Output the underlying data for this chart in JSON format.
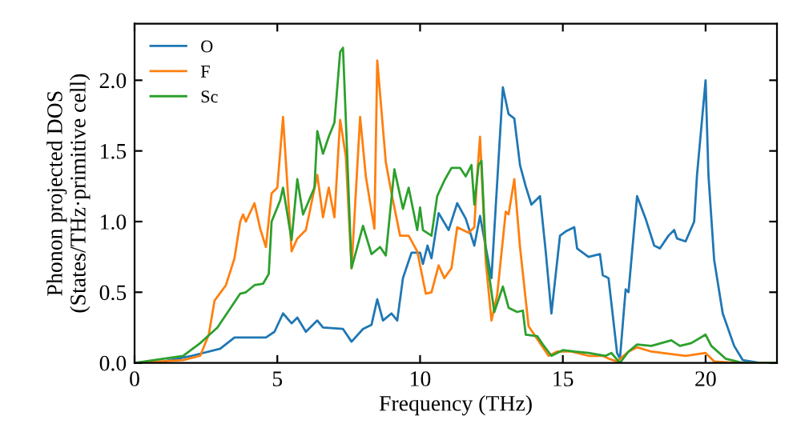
{
  "chart_data": {
    "type": "line",
    "xlabel": "Frequency (THz)",
    "ylabel": "Phonon projected DOS\n(States/THz·primitive cell)",
    "xlim": [
      0,
      22.5
    ],
    "ylim": [
      0,
      2.4
    ],
    "xticks": [
      0,
      5,
      10,
      15,
      20
    ],
    "yticks": [
      {
        "value": 0,
        "label": "0.0"
      },
      0.5,
      {
        "value": 1,
        "label": "1.0"
      },
      1.5,
      {
        "value": 2,
        "label": "2.0"
      }
    ],
    "grid": false,
    "legend": "top left",
    "marker": "none",
    "line_style": "solid",
    "series": [
      {
        "name": "O",
        "color": "#1f77b4",
        "x": [
          0,
          1,
          2,
          3,
          3.5,
          4.5,
          4.6,
          4.9,
          5.2,
          5.5,
          5.7,
          6.0,
          6.4,
          6.6,
          7.3,
          7.6,
          8.0,
          8.3,
          8.5,
          8.7,
          9.0,
          9.2,
          9.4,
          9.7,
          10.0,
          10.1,
          10.26,
          10.4,
          10.65,
          11.0,
          11.3,
          11.6,
          11.9,
          12.1,
          12.5,
          12.9,
          13.1,
          13.3,
          13.5,
          13.7,
          13.9,
          14.2,
          14.4,
          14.6,
          14.9,
          15.1,
          15.4,
          15.5,
          15.9,
          16.3,
          16.4,
          16.6,
          16.9,
          17.0,
          17.2,
          17.3,
          17.6,
          17.9,
          18.2,
          18.4,
          18.7,
          18.9,
          19.0,
          19.3,
          19.6,
          19.7,
          20.0,
          20.1,
          20.3,
          20.6,
          21.0,
          21.3,
          21.9,
          22.5
        ],
        "values": [
          0,
          0.01,
          0.05,
          0.1,
          0.18,
          0.18,
          0.18,
          0.22,
          0.35,
          0.28,
          0.32,
          0.22,
          0.3,
          0.25,
          0.24,
          0.15,
          0.24,
          0.27,
          0.45,
          0.3,
          0.35,
          0.3,
          0.6,
          0.78,
          0.78,
          0.7,
          0.83,
          0.74,
          1.06,
          0.94,
          1.13,
          1.02,
          0.83,
          1.04,
          0.6,
          1.95,
          1.76,
          1.73,
          1.4,
          1.25,
          1.12,
          1.18,
          0.79,
          0.35,
          0.9,
          0.93,
          0.96,
          0.81,
          0.75,
          0.77,
          0.62,
          0.6,
          0.07,
          0.03,
          0.52,
          0.5,
          1.18,
          1.02,
          0.83,
          0.81,
          0.9,
          0.94,
          0.88,
          0.86,
          1.0,
          1.33,
          2.0,
          1.33,
          0.73,
          0.35,
          0.12,
          0.02,
          0,
          0
        ]
      },
      {
        "name": "F",
        "color": "#ff7f0e",
        "x": [
          0,
          1.7,
          2.3,
          2.6,
          2.8,
          3.2,
          3.5,
          3.7,
          3.8,
          3.9,
          4.2,
          4.4,
          4.6,
          4.8,
          5.0,
          5.2,
          5.5,
          5.7,
          6.0,
          6.4,
          6.6,
          6.8,
          7.0,
          7.2,
          7.4,
          7.6,
          7.9,
          8.1,
          8.4,
          8.5,
          8.8,
          9.0,
          9.3,
          9.6,
          9.9,
          10.2,
          10.4,
          10.65,
          10.85,
          11.1,
          11.3,
          11.7,
          11.9,
          12.0,
          12.1,
          12.3,
          12.5,
          12.7,
          13.0,
          13.1,
          13.3,
          13.5,
          13.8,
          14.2,
          14.5,
          14.8,
          15.3,
          15.9,
          16.4,
          16.6,
          16.9,
          17.3,
          17.6,
          18.1,
          19.3,
          20.0,
          20.3,
          21.1,
          22.5
        ],
        "values": [
          0,
          0.02,
          0.05,
          0.2,
          0.44,
          0.55,
          0.74,
          1.0,
          1.05,
          1.0,
          1.13,
          0.95,
          0.82,
          1.2,
          1.24,
          1.74,
          0.79,
          0.88,
          0.94,
          1.33,
          1.03,
          1.24,
          1.03,
          1.72,
          1.46,
          0.67,
          1.74,
          1.32,
          0.95,
          2.14,
          1.42,
          1.2,
          0.9,
          0.9,
          0.79,
          0.49,
          0.5,
          0.69,
          0.6,
          0.67,
          0.96,
          0.92,
          0.96,
          1.33,
          1.6,
          0.72,
          0.3,
          0.48,
          1.07,
          1.05,
          1.3,
          0.82,
          0.26,
          0.14,
          0.05,
          0.08,
          0.08,
          0.05,
          0.05,
          0.03,
          0.01,
          0.08,
          0.11,
          0.08,
          0.05,
          0.07,
          0.01,
          0,
          0
        ]
      },
      {
        "name": "Sc",
        "color": "#2ca02c",
        "x": [
          0,
          1.7,
          2.3,
          2.9,
          3.4,
          3.7,
          3.9,
          4.2,
          4.5,
          4.7,
          4.8,
          5.1,
          5.2,
          5.5,
          5.7,
          5.9,
          6.3,
          6.4,
          6.6,
          6.8,
          7.0,
          7.2,
          7.3,
          7.4,
          7.6,
          8.0,
          8.3,
          8.6,
          8.8,
          9.1,
          9.4,
          9.6,
          9.9,
          10.0,
          10.1,
          10.4,
          10.6,
          10.85,
          11.1,
          11.4,
          11.6,
          11.8,
          11.9,
          12.05,
          12.15,
          12.3,
          12.6,
          12.9,
          13.1,
          13.4,
          13.6,
          13.7,
          14.1,
          14.3,
          14.6,
          15.0,
          15.4,
          15.9,
          16.5,
          16.7,
          17.0,
          17.3,
          17.6,
          18.1,
          18.8,
          19.1,
          19.5,
          20.0,
          20.2,
          20.7,
          21.3,
          22.5
        ],
        "values": [
          0,
          0.05,
          0.14,
          0.25,
          0.4,
          0.49,
          0.5,
          0.55,
          0.56,
          0.63,
          1.0,
          1.15,
          1.24,
          0.87,
          1.3,
          1.05,
          1.24,
          1.64,
          1.48,
          1.6,
          1.7,
          2.2,
          2.23,
          1.72,
          0.67,
          0.97,
          0.77,
          0.82,
          0.76,
          1.37,
          1.09,
          1.24,
          0.94,
          1.1,
          0.94,
          0.9,
          1.18,
          1.29,
          1.38,
          1.38,
          1.32,
          1.4,
          1.12,
          1.4,
          1.43,
          0.79,
          0.36,
          0.54,
          0.39,
          0.36,
          0.37,
          0.2,
          0.19,
          0.13,
          0.05,
          0.09,
          0.08,
          0.07,
          0.05,
          0.07,
          0.0,
          0.08,
          0.13,
          0.12,
          0.16,
          0.12,
          0.14,
          0.2,
          0.12,
          0.03,
          0,
          0
        ]
      }
    ]
  }
}
